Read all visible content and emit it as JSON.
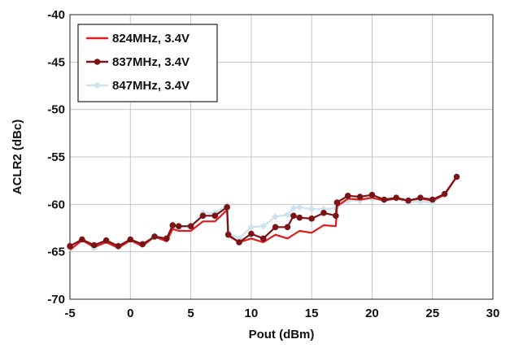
{
  "chart_data": {
    "type": "line",
    "title": "",
    "xlabel": "Pout (dBm)",
    "ylabel": "ACLR2 (dBc)",
    "xlim": [
      -5,
      30
    ],
    "ylim": [
      -70,
      -40
    ],
    "xticks": [
      -5,
      0,
      5,
      10,
      15,
      20,
      25,
      30
    ],
    "yticks": [
      -40,
      -45,
      -50,
      -55,
      -60,
      -65,
      -70
    ],
    "grid": true,
    "legend_position": "top-left",
    "series": [
      {
        "name": "824MHz, 3.4V",
        "color": "#e31a1c",
        "marker": "none",
        "x": [
          -5,
          -4,
          -3,
          -2,
          -1,
          0,
          1,
          2,
          3,
          3.5,
          4,
          5,
          6,
          7,
          8,
          8.1,
          9,
          10,
          11,
          12,
          13,
          14,
          15,
          16,
          17,
          17.1,
          18,
          19,
          20,
          21,
          22,
          23,
          24,
          25,
          26,
          27
        ],
        "y": [
          -64.8,
          -63.8,
          -64.5,
          -64.0,
          -64.6,
          -63.8,
          -64.4,
          -63.4,
          -63.9,
          -62.6,
          -62.8,
          -62.8,
          -61.8,
          -61.8,
          -60.6,
          -63.3,
          -64.0,
          -63.6,
          -64.0,
          -63.2,
          -63.6,
          -62.8,
          -63.0,
          -62.2,
          -62.3,
          -60.2,
          -59.4,
          -59.5,
          -59.3,
          -59.6,
          -59.4,
          -59.6,
          -59.4,
          -59.6,
          -59.0,
          -57.1
        ]
      },
      {
        "name": "837MHz, 3.4V",
        "color": "#7b1416",
        "marker": "circle",
        "x": [
          -5,
          -4,
          -3,
          -2,
          -1,
          0,
          1,
          2,
          3,
          3.5,
          4,
          5,
          6,
          7,
          8,
          8.1,
          9,
          10,
          11,
          12,
          13,
          13.5,
          14,
          15,
          16,
          17,
          17.1,
          18,
          19,
          20,
          21,
          22,
          23,
          24,
          25,
          26,
          27
        ],
        "y": [
          -64.4,
          -63.7,
          -64.3,
          -63.8,
          -64.4,
          -63.7,
          -64.2,
          -63.4,
          -63.6,
          -62.2,
          -62.3,
          -62.3,
          -61.2,
          -61.2,
          -60.3,
          -63.2,
          -64.0,
          -63.1,
          -63.6,
          -62.4,
          -62.4,
          -61.2,
          -61.4,
          -61.5,
          -60.9,
          -61.2,
          -59.8,
          -59.1,
          -59.2,
          -59.0,
          -59.5,
          -59.3,
          -59.6,
          -59.3,
          -59.5,
          -58.9,
          -57.1
        ]
      },
      {
        "name": "847MHz, 3.4V",
        "color": "#cbe3ec",
        "marker": "diamond",
        "x": [
          -5,
          -4,
          -3,
          -2,
          -1,
          0,
          1,
          2,
          3,
          3.5,
          4,
          5,
          6,
          7,
          8,
          8.1,
          9,
          10,
          11,
          12,
          13,
          13.5,
          14,
          15,
          16,
          17,
          17.1,
          18,
          19,
          20,
          21,
          22,
          23,
          24,
          25,
          26,
          27
        ],
        "y": [
          -64.6,
          -63.7,
          -64.6,
          -63.9,
          -64.5,
          -63.7,
          -64.3,
          -63.3,
          -63.7,
          -62.4,
          -62.4,
          -62.4,
          -60.9,
          -60.9,
          -60.1,
          -63.0,
          -63.6,
          -62.4,
          -62.3,
          -61.3,
          -61.1,
          -60.4,
          -60.3,
          -60.5,
          -60.5,
          -60.4,
          -60.2,
          -59.6,
          -59.6,
          -59.4,
          -59.6,
          -59.4,
          -59.8,
          -59.7,
          -59.8,
          -59.0,
          -57.0
        ]
      }
    ]
  }
}
